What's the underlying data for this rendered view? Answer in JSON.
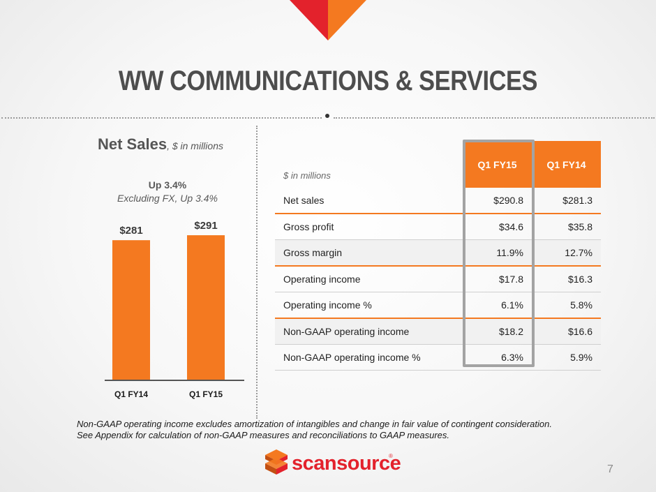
{
  "slide": {
    "title": "WW COMMUNICATIONS & SERVICES",
    "page_number": "7"
  },
  "chart_heading": {
    "main": "Net Sales",
    "sub": ", $ in millions"
  },
  "growth": {
    "line1": "Up 3.4%",
    "line2": "Excluding FX, Up 3.4%"
  },
  "chart_data": {
    "type": "bar",
    "categories": [
      "Q1 FY14",
      "Q1 FY15"
    ],
    "values": [
      281,
      291
    ],
    "data_labels": [
      "$281",
      "$291"
    ],
    "title": "Net Sales",
    "subtitle": "$ in millions",
    "xlabel": "",
    "ylabel": "",
    "ylim": [
      0,
      360
    ],
    "grid": false,
    "colors": {
      "bar": "#F47920"
    }
  },
  "table": {
    "units_label": "$ in millions",
    "columns": [
      "Q1 FY15",
      "Q1 FY14"
    ],
    "rows": [
      {
        "label": "Net sales",
        "values": [
          "$290.8",
          "$281.3"
        ]
      },
      {
        "label": "Gross profit",
        "values": [
          "$34.6",
          "$35.8"
        ]
      },
      {
        "label": "Gross margin",
        "values": [
          "11.9%",
          "12.7%"
        ]
      },
      {
        "label": "Operating income",
        "values": [
          "$17.8",
          "$16.3"
        ]
      },
      {
        "label": "Operating income %",
        "values": [
          "6.1%",
          "5.8%"
        ]
      },
      {
        "label": "Non-GAAP operating income",
        "values": [
          "$18.2",
          "$16.6"
        ]
      },
      {
        "label": "Non-GAAP operating income %",
        "values": [
          "6.3%",
          "5.9%"
        ]
      }
    ]
  },
  "footnote": {
    "line1": "Non-GAAP operating income excludes amortization of intangibles and change in fair value of contingent consideration.",
    "line2": "See Appendix for calculation of non-GAAP measures and reconciliations to GAAP measures."
  },
  "logo": {
    "text": "scansource",
    "registered": "®"
  },
  "colors": {
    "accent": "#F47920",
    "red": "#E3222C",
    "title": "#4D4D4D",
    "highlight_border": "#A3A3A3"
  }
}
